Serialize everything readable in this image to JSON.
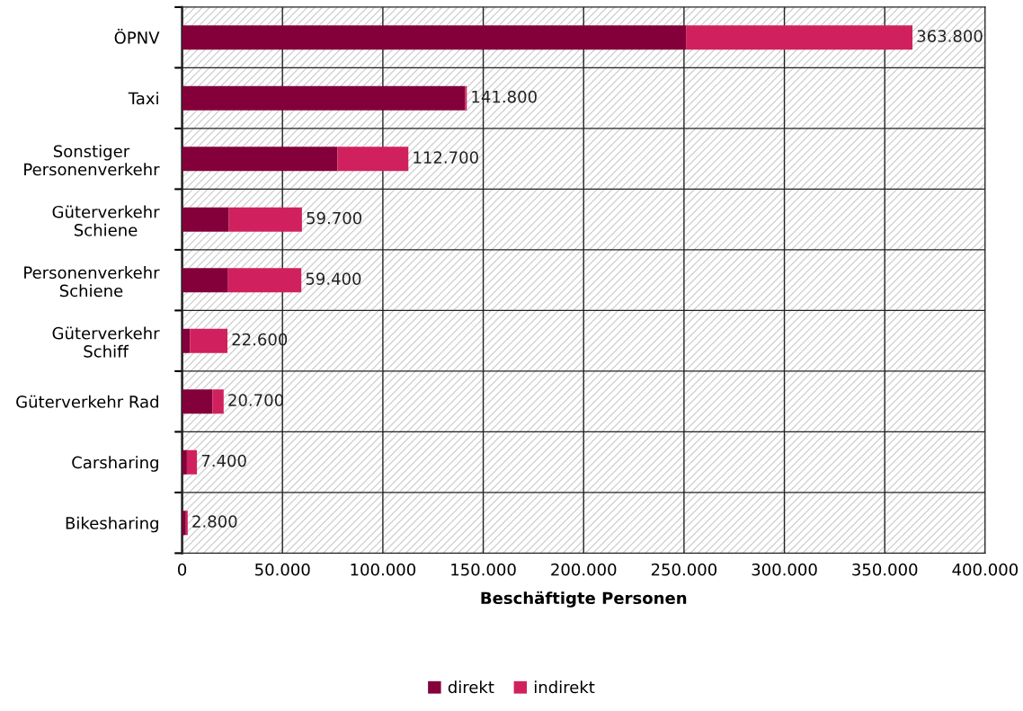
{
  "chart_data": {
    "type": "bar",
    "orientation": "horizontal",
    "stacked": true,
    "xlabel": "Beschäftigte Personen",
    "categories": [
      "ÖPNV",
      "Taxi",
      "Sonstiger\nPersonenverkehr",
      "Güterverkehr\nSchiene",
      "Personenverkehr\nSchiene",
      "Güterverkehr\nSchiff",
      "Güterverkehr Rad",
      "Carsharing",
      "Bikesharing"
    ],
    "series": [
      {
        "name": "direkt",
        "color": "#84003a",
        "values": [
          251000,
          141000,
          77400,
          23300,
          22900,
          3900,
          15100,
          2400,
          1900
        ]
      },
      {
        "name": "indirekt",
        "color": "#d0215e",
        "values": [
          112800,
          800,
          35300,
          36400,
          36500,
          18700,
          5600,
          5000,
          900
        ]
      }
    ],
    "totals": [
      "363.800",
      "141.800",
      "112.700",
      "59.700",
      "59.400",
      "22.600",
      "20.700",
      "7.400",
      "2.800"
    ],
    "xlim": [
      0,
      400000
    ],
    "xticks": [
      0,
      {
        "value": 50000,
        "label": "50.000"
      },
      {
        "value": 100000,
        "label": "100.000"
      },
      {
        "value": 150000,
        "label": "150.000"
      },
      {
        "value": 200000,
        "label": "200.000"
      },
      {
        "value": 250000,
        "label": "250.000"
      },
      {
        "value": 300000,
        "label": "300.000"
      },
      {
        "value": 350000,
        "label": "350.000"
      },
      {
        "value": 400000,
        "label": "400.000"
      }
    ],
    "grid": true,
    "legend": "bottom"
  }
}
